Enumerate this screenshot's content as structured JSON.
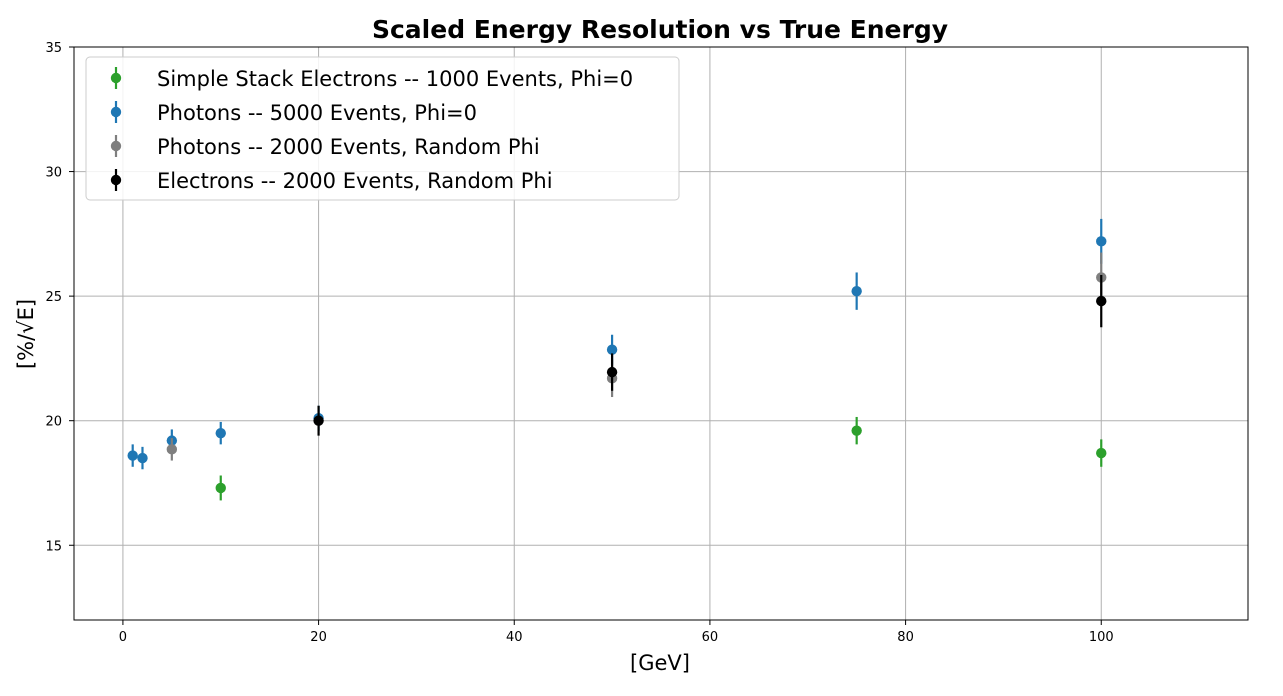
{
  "chart_data": {
    "type": "scatter",
    "title": "Scaled Energy Resolution vs True Energy",
    "xlabel": "[GeV]",
    "ylabel": "[%/√E]",
    "xlim": [
      -5,
      115
    ],
    "ylim": [
      12,
      35
    ],
    "xticks": [
      0,
      20,
      40,
      60,
      80,
      100
    ],
    "yticks": [
      15,
      20,
      25,
      30,
      35
    ],
    "grid": true,
    "legend_position": "upper-left",
    "series": [
      {
        "name": "Simple Stack Electrons -- 1000 Events, Phi=0",
        "color": "#2ca02c",
        "x": [
          10,
          75,
          100
        ],
        "y": [
          17.3,
          19.6,
          18.7
        ],
        "yerr": [
          0.5,
          0.55,
          0.55
        ]
      },
      {
        "name": "Photons -- 5000 Events, Phi=0",
        "color": "#1f77b4",
        "x": [
          1,
          2,
          5,
          10,
          20,
          50,
          75,
          100
        ],
        "y": [
          18.6,
          18.5,
          19.2,
          19.5,
          20.1,
          22.85,
          25.2,
          27.2
        ],
        "yerr": [
          0.45,
          0.45,
          0.45,
          0.45,
          0.5,
          0.6,
          0.75,
          0.9
        ]
      },
      {
        "name": "Photons -- 2000 Events, Random Phi",
        "color": "#7f7f7f",
        "x": [
          5,
          50,
          100
        ],
        "y": [
          18.85,
          21.7,
          25.75
        ],
        "yerr": [
          0.45,
          0.75,
          1.0
        ]
      },
      {
        "name": "Electrons -- 2000 Events, Random Phi",
        "color": "#000000",
        "x": [
          20,
          50,
          100
        ],
        "y": [
          20.0,
          21.95,
          24.8
        ],
        "yerr": [
          0.6,
          0.75,
          1.05
        ]
      }
    ]
  }
}
